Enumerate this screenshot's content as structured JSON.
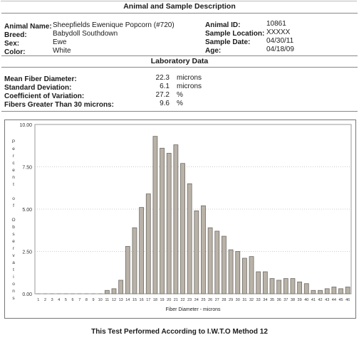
{
  "sections": {
    "animal_title": "Animal and Sample Description",
    "lab_title": "Laboratory Data"
  },
  "animal": {
    "name_label": "Animal Name:",
    "name_value": "Sheepfields Ewenique Popcorn (#720)",
    "breed_label": "Breed:",
    "breed_value": "Babydoll Southdown",
    "sex_label": "Sex:",
    "sex_value": "Ewe",
    "color_label": "Color:",
    "color_value": "White",
    "id_label": "Animal ID:",
    "id_value": "10861",
    "location_label": "Sample Location:",
    "location_value": "XXXXX",
    "date_label": "Sample Date:",
    "date_value": "04/30/11",
    "age_label": "Age:",
    "age_value": "04/18/09"
  },
  "lab": {
    "mfd_label": "Mean Fiber Diameter:",
    "mfd_value": "22.3",
    "mfd_unit": "microns",
    "sd_label": "Standard Deviation:",
    "sd_value": "6.1",
    "sd_unit": "microns",
    "cv_label": "Coefficient of Variation:",
    "cv_value": "27.2",
    "cv_unit": "%",
    "f30_label": "Fibers Greater Than 30 microns:",
    "f30_value": "9.6",
    "f30_unit": "%"
  },
  "chart_data": {
    "type": "bar",
    "xlabel": "Fiber Diameter - microns",
    "ylabel": "Percent of Observations",
    "ylim": [
      0,
      10
    ],
    "yticks": [
      "0.00",
      "2.50",
      "5.00",
      "7.50",
      "10.00"
    ],
    "grid": true,
    "categories": [
      "1",
      "2",
      "3",
      "4",
      "5",
      "6",
      "7",
      "8",
      "9",
      "10",
      "11",
      "12",
      "13",
      "14",
      "15",
      "16",
      "17",
      "18",
      "19",
      "20",
      "21",
      "22",
      "23",
      "24",
      "25",
      "26",
      "27",
      "28",
      "29",
      "30",
      "31",
      "32",
      "33",
      "34",
      "35",
      "36",
      "37",
      "38",
      "39",
      "40",
      "41",
      "42",
      "43",
      "44",
      "45",
      "46"
    ],
    "values": [
      0,
      0,
      0,
      0,
      0,
      0,
      0,
      0,
      0,
      0,
      0.2,
      0.3,
      0.8,
      2.8,
      3.9,
      5.1,
      5.9,
      9.3,
      8.6,
      8.3,
      8.8,
      7.7,
      6.5,
      4.9,
      5.2,
      3.9,
      3.7,
      3.4,
      2.6,
      2.5,
      2.1,
      2.2,
      1.3,
      1.3,
      0.9,
      0.8,
      0.9,
      0.9,
      0.7,
      0.6,
      0.2,
      0.2,
      0.3,
      0.4,
      0.3,
      0.4
    ]
  },
  "footer": {
    "text": "This Test Performed According to I.W.T.O Method 12"
  }
}
